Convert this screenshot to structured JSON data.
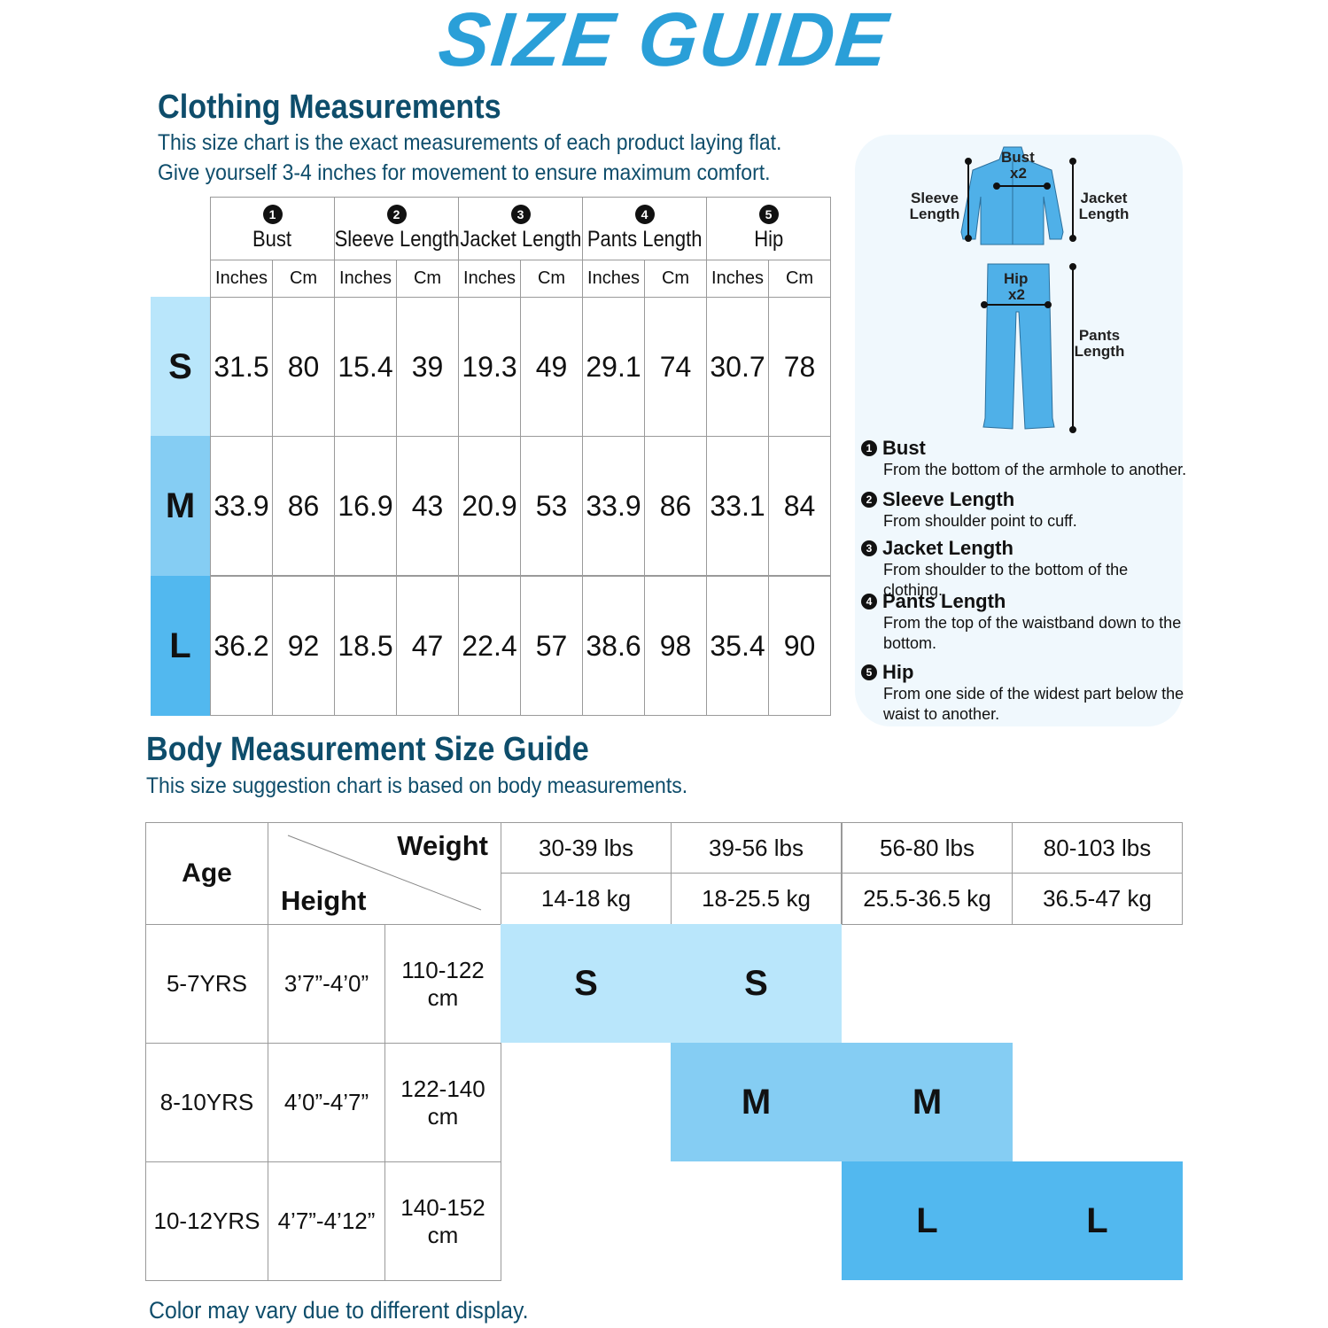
{
  "title": "SIZE GUIDE",
  "clothing": {
    "heading": "Clothing Measurements",
    "lines": [
      "This size chart is the exact measurements of each product laying flat.",
      "Give yourself 3-4 inches for movement to ensure maximum comfort."
    ],
    "columns": [
      {
        "n": "1",
        "label": "Bust"
      },
      {
        "n": "2",
        "label": "Sleeve Length"
      },
      {
        "n": "3",
        "label": "Jacket Length"
      },
      {
        "n": "4",
        "label": "Pants Length"
      },
      {
        "n": "5",
        "label": "Hip"
      }
    ],
    "units": [
      "Inches",
      "Cm"
    ],
    "rows": [
      {
        "size": "S",
        "values": [
          "31.5",
          "80",
          "15.4",
          "39",
          "19.3",
          "49",
          "29.1",
          "74",
          "30.7",
          "78"
        ]
      },
      {
        "size": "M",
        "values": [
          "33.9",
          "86",
          "16.9",
          "43",
          "20.9",
          "53",
          "33.9",
          "86",
          "33.1",
          "84"
        ]
      },
      {
        "size": "L",
        "values": [
          "36.2",
          "92",
          "18.5",
          "47",
          "22.4",
          "57",
          "38.6",
          "98",
          "35.4",
          "90"
        ]
      }
    ]
  },
  "diagram": {
    "labels": {
      "bust": "Bust",
      "x2": "x2",
      "sleeve": "Sleeve Length",
      "jacket": "Jacket Length",
      "hip": "Hip",
      "pants": "Pants Length"
    },
    "definitions": [
      {
        "n": "1",
        "title": "Bust",
        "desc": "From the bottom of the armhole to another."
      },
      {
        "n": "2",
        "title": "Sleeve Length",
        "desc": "From shoulder point to cuff."
      },
      {
        "n": "3",
        "title": "Jacket Length",
        "desc": "From shoulder to the bottom of the clothing."
      },
      {
        "n": "4",
        "title": "Pants Length",
        "desc": "From the top of the waistband down to the bottom."
      },
      {
        "n": "5",
        "title": "Hip",
        "desc": "From one side of the widest part below the waist to another."
      }
    ]
  },
  "body": {
    "heading": "Body Measurement Size Guide",
    "subtitle": "This size suggestion chart is based on body measurements.",
    "age_label": "Age",
    "weight_label": "Weight",
    "height_label": "Height",
    "weights_lbs": [
      "30-39 lbs",
      "39-56 lbs",
      "56-80 lbs",
      "80-103 lbs"
    ],
    "weights_kg": [
      "14-18 kg",
      "18-25.5 kg",
      "25.5-36.5 kg",
      "36.5-47 kg"
    ],
    "rows": [
      {
        "age": "5-7YRS",
        "height_in": "3’7”-4’0”",
        "height_cm": "110-122 cm",
        "sizes": [
          "S",
          "S",
          "",
          ""
        ]
      },
      {
        "age": "8-10YRS",
        "height_in": "4’0”-4’7”",
        "height_cm": "122-140 cm",
        "sizes": [
          "",
          "M",
          "M",
          ""
        ]
      },
      {
        "age": "10-12YRS",
        "height_in": "4’7”-4’12”",
        "height_cm": "140-152 cm",
        "sizes": [
          "",
          "",
          "L",
          "L"
        ]
      }
    ]
  },
  "footer": "Color may vary due to different display.",
  "colors": {
    "title": "#2a9fd8",
    "heading": "#0e4d6b",
    "S": "#b9e6fb",
    "M": "#85cdf3",
    "L": "#52b8ef",
    "garment": "#4fb0e8"
  }
}
